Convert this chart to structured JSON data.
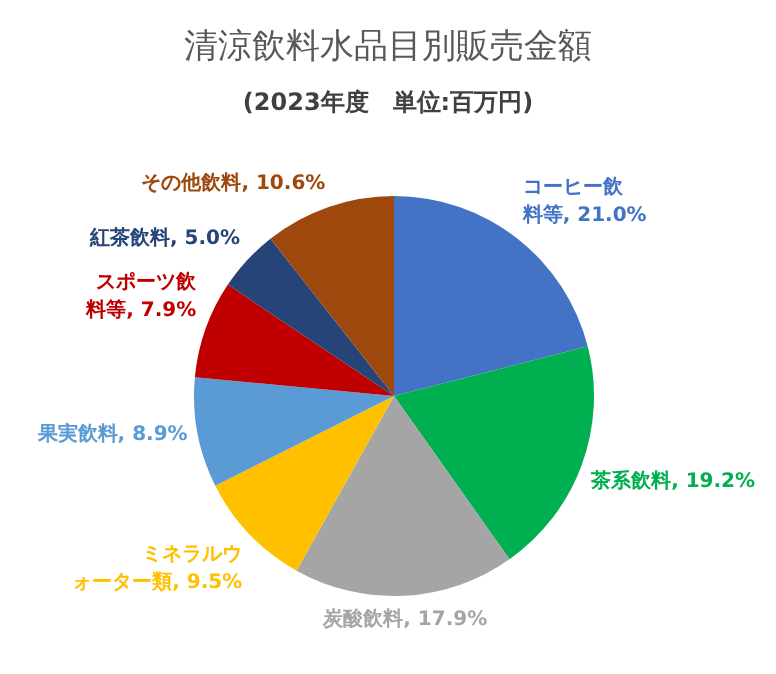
{
  "chart_data": {
    "type": "pie",
    "title": "清涼飲料水品目別販売金額",
    "subtitle": "(2023年度　単位:百万円)",
    "categories": [
      "コーヒー飲料等",
      "茶系飲料",
      "炭酸飲料",
      "ミネラルウォーター類",
      "果実飲料",
      "スポーツ飲料等",
      "紅茶飲料",
      "その他飲料"
    ],
    "values": [
      21.0,
      19.2,
      17.9,
      9.5,
      8.9,
      7.9,
      5.0,
      10.6
    ],
    "value_labels": [
      "21.0%",
      "19.2%",
      "17.9%",
      "9.5%",
      "8.9%",
      "7.9%",
      "5.0%",
      "10.6%"
    ],
    "colors": [
      "#4472c4",
      "#00b050",
      "#a5a5a5",
      "#ffc000",
      "#5b9bd5",
      "#c00000",
      "#264478",
      "#9e480e"
    ],
    "legend": false
  }
}
